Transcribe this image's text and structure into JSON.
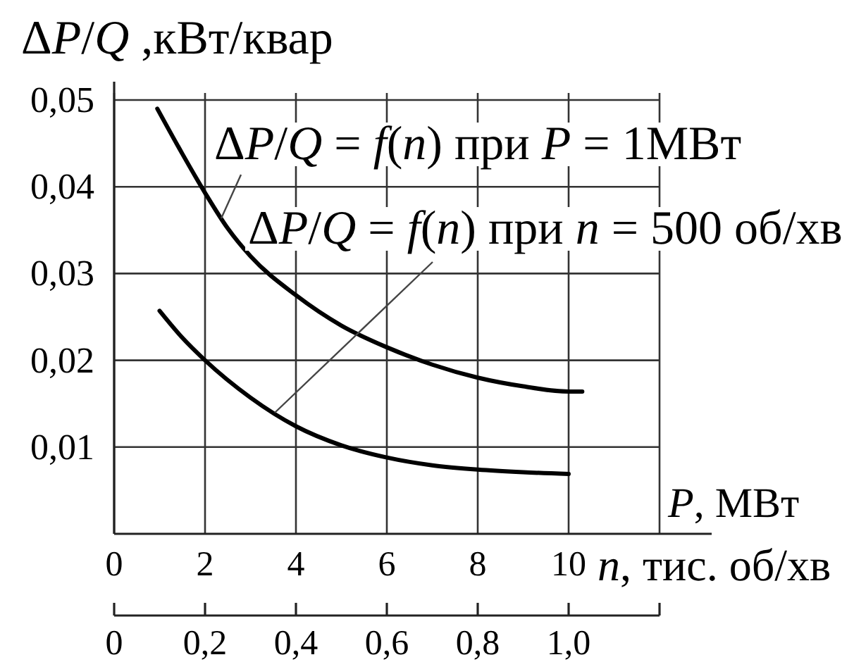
{
  "chart_data": {
    "type": "line",
    "ylabel": "ΔP/Q ,кВт/квар",
    "xlabel": "n, тис. об/хв",
    "x2label": "P, МВт",
    "xlim": [
      0,
      12
    ],
    "xticks": [
      0,
      2,
      4,
      6,
      8,
      10,
      {
        "value": 12,
        "label": null
      }
    ],
    "x2lim": [
      0,
      1.2
    ],
    "x2ticks": [
      0,
      {
        "value": 0.2,
        "label": "0,2"
      },
      {
        "value": 0.4,
        "label": "0,4"
      },
      {
        "value": 0.6,
        "label": "0,6"
      },
      {
        "value": 0.8,
        "label": "0,8"
      },
      {
        "value": 1.0,
        "label": "1,0"
      },
      {
        "value": 1.2,
        "label": null
      }
    ],
    "ylim": [
      0,
      0.05
    ],
    "yticks": [
      {
        "value": 0.01,
        "label": "0,01"
      },
      {
        "value": 0.02,
        "label": "0,02"
      },
      {
        "value": 0.03,
        "label": "0,03"
      },
      {
        "value": 0.04,
        "label": "0,04"
      },
      {
        "value": 0.05,
        "label": "0,05"
      }
    ],
    "grid": true,
    "series": [
      {
        "name": "ΔP/Q = f(n) при P = 1МВт",
        "color": "#000000",
        "x": [
          0.95,
          1.5,
          2,
          2.5,
          3,
          4,
          5,
          6,
          7,
          8,
          9,
          10,
          10.3
        ],
        "values": [
          0.049,
          0.0438,
          0.0393,
          0.0352,
          0.032,
          0.0275,
          0.024,
          0.0215,
          0.0195,
          0.018,
          0.017,
          0.0164,
          0.0164
        ]
      },
      {
        "name": "ΔP/Q = f(n) при n = 500 об/хв",
        "color": "#000000",
        "axis": "x2",
        "x": [
          0.1,
          0.15,
          0.2,
          0.3,
          0.4,
          0.5,
          0.6,
          0.7,
          0.8,
          0.9,
          1.0
        ],
        "values": [
          0.0257,
          0.0226,
          0.02,
          0.0157,
          0.0124,
          0.0102,
          0.0088,
          0.0079,
          0.0074,
          0.0071,
          0.0069
        ]
      }
    ]
  }
}
